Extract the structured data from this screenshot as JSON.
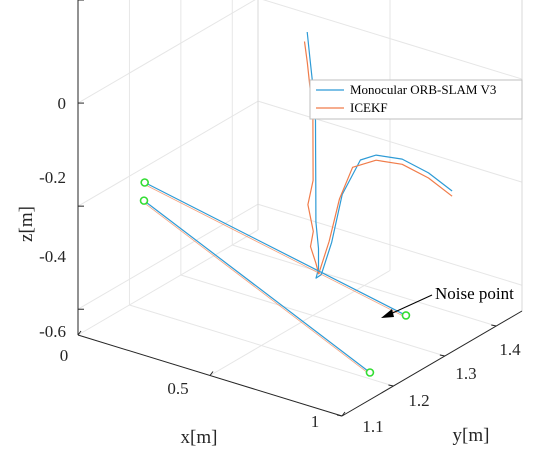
{
  "chart_data": {
    "type": "line",
    "title": "",
    "xlabel": "x[m]",
    "ylabel": "y[m]",
    "zlabel": "z[m]",
    "x_ticks": [
      "0",
      "0.5",
      "1"
    ],
    "y_ticks": [
      "1.1",
      "1.2",
      "1.3",
      "1.4"
    ],
    "z_ticks": [
      "0",
      "-0.2",
      "-0.4",
      "-0.6"
    ],
    "grid": true,
    "legend_position": "top-right",
    "series": [
      {
        "name": "Monocular ORB-SLAM V3",
        "color": "#2e9bd6",
        "points": [
          {
            "x": 0.42,
            "y": 1.33,
            "z": -0.13
          },
          {
            "x": 0.45,
            "y": 1.32,
            "z": -0.17
          },
          {
            "x": 0.48,
            "y": 1.31,
            "z": -0.21
          },
          {
            "x": 0.51,
            "y": 1.3,
            "z": -0.27
          },
          {
            "x": 0.53,
            "y": 1.29,
            "z": -0.32
          },
          {
            "x": 0.55,
            "y": 1.28,
            "z": -0.38
          },
          {
            "x": 0.57,
            "y": 1.27,
            "z": -0.44
          },
          {
            "x": 0.58,
            "y": 1.27,
            "z": -0.49
          },
          {
            "x": 0.58,
            "y": 1.27,
            "z": -0.53
          },
          {
            "x": 0.59,
            "y": 1.26,
            "z": -0.54
          },
          {
            "x": 0.61,
            "y": 1.26,
            "z": -0.53
          },
          {
            "x": 0.63,
            "y": 1.27,
            "z": -0.47
          },
          {
            "x": 0.65,
            "y": 1.28,
            "z": -0.38
          },
          {
            "x": 0.68,
            "y": 1.3,
            "z": -0.32
          },
          {
            "x": 0.72,
            "y": 1.31,
            "z": -0.31
          },
          {
            "x": 0.78,
            "y": 1.33,
            "z": -0.32
          },
          {
            "x": 0.86,
            "y": 1.34,
            "z": -0.34
          },
          {
            "x": 0.93,
            "y": 1.35,
            "z": -0.37
          }
        ]
      },
      {
        "name": "ICEKF",
        "color": "#f07c4a",
        "points": [
          {
            "x": 0.41,
            "y": 1.33,
            "z": -0.15
          },
          {
            "x": 0.44,
            "y": 1.32,
            "z": -0.18
          },
          {
            "x": 0.47,
            "y": 1.31,
            "z": -0.22
          },
          {
            "x": 0.5,
            "y": 1.3,
            "z": -0.27
          },
          {
            "x": 0.52,
            "y": 1.29,
            "z": -0.32
          },
          {
            "x": 0.54,
            "y": 1.28,
            "z": -0.37
          },
          {
            "x": 0.52,
            "y": 1.28,
            "z": -0.42
          },
          {
            "x": 0.56,
            "y": 1.27,
            "z": -0.46
          },
          {
            "x": 0.53,
            "y": 1.28,
            "z": -0.5
          },
          {
            "x": 0.57,
            "y": 1.27,
            "z": -0.52
          },
          {
            "x": 0.6,
            "y": 1.26,
            "z": -0.53
          },
          {
            "x": 0.62,
            "y": 1.27,
            "z": -0.47
          },
          {
            "x": 0.64,
            "y": 1.28,
            "z": -0.39
          },
          {
            "x": 0.67,
            "y": 1.29,
            "z": -0.33
          },
          {
            "x": 0.72,
            "y": 1.31,
            "z": -0.32
          },
          {
            "x": 0.78,
            "y": 1.33,
            "z": -0.33
          },
          {
            "x": 0.86,
            "y": 1.34,
            "z": -0.35
          },
          {
            "x": 0.93,
            "y": 1.35,
            "z": -0.38
          }
        ]
      }
    ],
    "noise_segments": [
      {
        "from": {
          "x": 0.35,
          "y": 1.05,
          "z": -0.27
        },
        "to": {
          "x": 0.95,
          "y": 1.25,
          "z": -0.55
        }
      },
      {
        "from": {
          "x": 0.25,
          "y": 1.1,
          "z": -0.35
        },
        "to": {
          "x": 0.95,
          "y": 1.18,
          "z": -0.62
        }
      }
    ],
    "noise_marker_color": "#33dd33",
    "annotation": {
      "text": "Noise point"
    }
  }
}
